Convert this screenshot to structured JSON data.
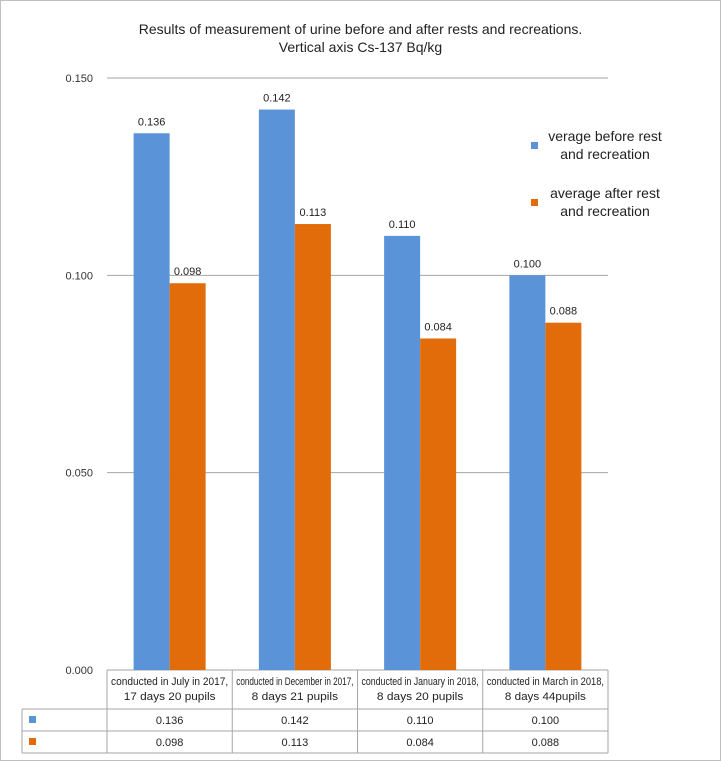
{
  "chart_data": {
    "type": "bar",
    "title_line1": "Results of measurement of urine before and after rests and recreations.",
    "title_line2": "Vertical axis Cs-137  Bq/kg",
    "categories": [
      [
        "conducted in July in 2017,",
        "17 days 20 pupils"
      ],
      [
        "conducted in December in 2017,",
        "8 days 21 pupils"
      ],
      [
        "conducted in January in 2018,",
        "8 days 20 pupils"
      ],
      [
        "conducted in March in 2018,",
        "8 days 44pupils"
      ]
    ],
    "series": [
      {
        "name": [
          "verage before rest",
          "and recreation"
        ],
        "color": "#5b93d9",
        "values": [
          0.136,
          0.142,
          0.11,
          0.1
        ]
      },
      {
        "name": [
          "average after rest",
          "and recreation"
        ],
        "color": "#e36c0a",
        "values": [
          0.098,
          0.113,
          0.084,
          0.088
        ]
      }
    ],
    "ylim": [
      0,
      0.15
    ],
    "yticks": [
      "0.000",
      "0.050",
      "0.100",
      "0.150"
    ],
    "ytick_values": [
      0,
      0.05,
      0.1,
      0.15
    ],
    "grid": true,
    "legend_position": "right",
    "data_table": true
  }
}
